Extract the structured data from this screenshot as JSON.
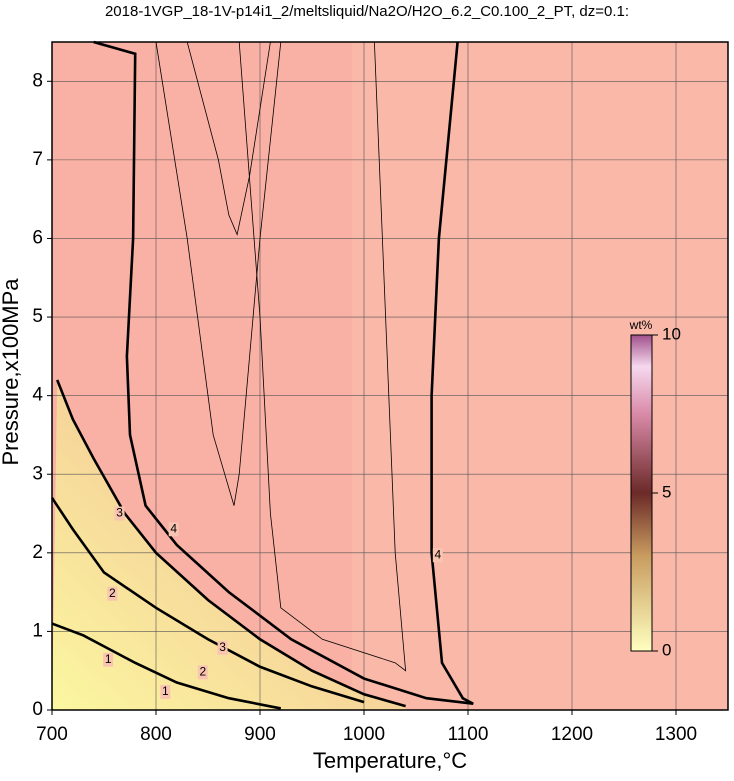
{
  "chart_data": {
    "type": "contour",
    "title": "2018-1VGP_18-1V-p14i1_2/meltsliquid/Na2O/H2O_6.2_C0.100_2_PT, dz=0.1:",
    "x_label": "Temperature,°C",
    "y_label": "Pressure,x100MPa",
    "xlim": [
      700,
      1350
    ],
    "ylim": [
      0,
      8.5
    ],
    "xticks": [
      700,
      800,
      900,
      1000,
      1100,
      1200,
      1300
    ],
    "yticks": [
      0,
      1,
      2,
      3,
      4,
      5,
      6,
      7,
      8
    ],
    "grid": true,
    "contours": [
      {
        "level": 1,
        "x": [
          700,
          730,
          780,
          820,
          870,
          920
        ],
        "y": [
          1.1,
          0.95,
          0.6,
          0.35,
          0.15,
          0.02
        ],
        "label_x": [
          754,
          809
        ],
        "label_y": [
          0.64,
          0.23
        ]
      },
      {
        "level": 2,
        "x": [
          700,
          720,
          750,
          800,
          850,
          900,
          950,
          1000
        ],
        "y": [
          2.7,
          2.3,
          1.75,
          1.3,
          0.9,
          0.55,
          0.3,
          0.1
        ],
        "label_x": [
          758,
          845
        ],
        "label_y": [
          1.48,
          0.48
        ]
      },
      {
        "level": 3,
        "x": [
          705,
          720,
          740,
          770,
          800,
          850,
          900,
          950,
          1000,
          1040
        ],
        "y": [
          4.2,
          3.7,
          3.2,
          2.5,
          2.0,
          1.4,
          0.9,
          0.5,
          0.2,
          0.05
        ],
        "label_x": [
          765,
          864
        ],
        "label_y": [
          2.5,
          0.79
        ]
      },
      {
        "level": 4,
        "x": [
          740,
          780,
          778,
          772,
          775,
          790,
          820,
          870,
          930,
          1000,
          1060,
          1105,
          1095,
          1075,
          1065,
          1065,
          1072,
          1090
        ],
        "y": [
          8.5,
          8.35,
          6,
          4.5,
          3.5,
          2.6,
          2.1,
          1.5,
          0.9,
          0.4,
          0.15,
          0.08,
          0.15,
          0.6,
          2,
          4,
          6,
          8.5
        ],
        "label_x": [
          817,
          1071
        ],
        "label_y": [
          2.3,
          1.97
        ]
      },
      {
        "level": 4.2,
        "x": [
          800,
          830,
          855,
          875,
          880,
          900,
          920
        ],
        "y": [
          8.5,
          6,
          3.5,
          2.6,
          3,
          6,
          8.5
        ],
        "label_x": [],
        "label_y": []
      },
      {
        "level": 4.4,
        "x": [
          830,
          860,
          870,
          878,
          890,
          910
        ],
        "y": [
          8.5,
          7,
          6.3,
          6.05,
          6.8,
          8.5
        ],
        "label_x": [],
        "label_y": []
      },
      {
        "level": 4.3,
        "x": [
          880,
          900,
          910,
          920,
          960,
          1030,
          1040,
          1030,
          1010
        ],
        "y": [
          8.5,
          5,
          2.5,
          1.3,
          0.9,
          0.6,
          0.5,
          2,
          8.5
        ],
        "label_x": [],
        "label_y": []
      }
    ],
    "colorbar": {
      "label": "wt%",
      "lim": [
        0,
        10
      ],
      "ticks": [
        0,
        5,
        10
      ]
    }
  }
}
